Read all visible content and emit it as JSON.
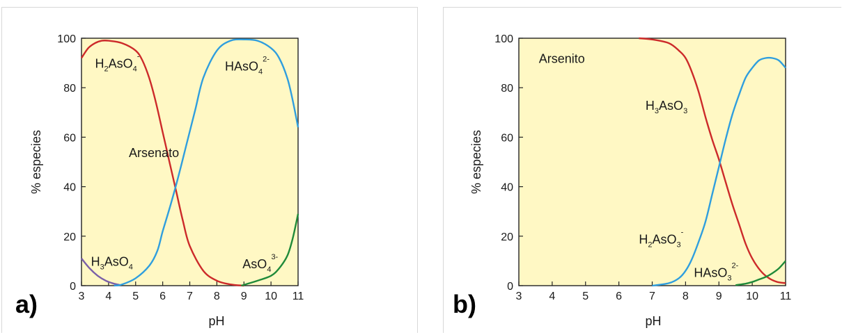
{
  "chart_data": [
    {
      "type": "line",
      "panel_label": "a)",
      "xlabel": "pH",
      "ylabel": "% especies",
      "xlim": [
        3,
        11
      ],
      "ylim": [
        0,
        100
      ],
      "xticks": [
        3,
        4,
        5,
        6,
        7,
        8,
        9,
        10,
        11
      ],
      "yticks": [
        0,
        20,
        40,
        60,
        80,
        100
      ],
      "background": "#fff8c4",
      "grid": false,
      "annotations": [
        {
          "text": "Arsenato",
          "x": 4.75,
          "y": 52,
          "parts": [
            {
              "t": "Arsenato"
            }
          ]
        },
        {
          "text": "H2AsO4-",
          "x": 3.5,
          "y": 88,
          "parts": [
            {
              "t": "H"
            },
            {
              "t": "2",
              "sub": true
            },
            {
              "t": "AsO"
            },
            {
              "t": "4",
              "sub": true
            },
            {
              "t": "-",
              "sup": true
            }
          ]
        },
        {
          "text": "HAsO42-",
          "x": 8.3,
          "y": 87,
          "parts": [
            {
              "t": "HAsO"
            },
            {
              "t": "4",
              "sub": true
            },
            {
              "t": "2-",
              "sup": true
            }
          ]
        },
        {
          "text": "H3AsO4",
          "x": 3.35,
          "y": 8,
          "parts": [
            {
              "t": "H"
            },
            {
              "t": "3",
              "sub": true
            },
            {
              "t": "AsO"
            },
            {
              "t": "4",
              "sub": true
            }
          ]
        },
        {
          "text": "AsO43-",
          "x": 8.95,
          "y": 7,
          "parts": [
            {
              "t": "AsO"
            },
            {
              "t": "4",
              "sub": true
            },
            {
              "t": "3-",
              "sup": true
            }
          ]
        }
      ],
      "series": [
        {
          "color": "#7a5fa8",
          "x": [
            3,
            3.3,
            3.6,
            3.9,
            4.2,
            4.4
          ],
          "values": [
            11,
            7,
            4,
            2,
            0.8,
            0.3
          ]
        },
        {
          "color": "#cc2a2a",
          "x": [
            3,
            3.25,
            3.5,
            3.75,
            4,
            4.5,
            5,
            5.25,
            5.5,
            5.75,
            6,
            6.25,
            6.5,
            6.75,
            7,
            7.5,
            8,
            8.5,
            9
          ],
          "values": [
            92,
            96,
            98,
            99,
            99,
            98,
            95,
            91,
            84,
            74,
            62,
            50,
            38,
            26,
            16,
            6,
            2,
            0.5,
            0
          ]
        },
        {
          "color": "#2f9ede",
          "x": [
            4.2,
            4.5,
            5,
            5.5,
            5.8,
            6,
            6.3,
            6.6,
            6.9,
            7.2,
            7.5,
            8,
            8.5,
            9,
            9.5,
            10,
            10.3,
            10.6,
            10.8,
            11
          ],
          "values": [
            0,
            0.5,
            3,
            8,
            14,
            22,
            33,
            45,
            58,
            71,
            84,
            95,
            99,
            99.5,
            99,
            96,
            92,
            84,
            75,
            64
          ]
        },
        {
          "color": "#1f8a3a",
          "x": [
            8.9,
            9.5,
            10,
            10.3,
            10.6,
            10.8,
            11
          ],
          "values": [
            0,
            2,
            4,
            7,
            12,
            19,
            29
          ]
        }
      ]
    },
    {
      "type": "line",
      "panel_label": "b)",
      "xlabel": "pH",
      "ylabel": "% especies",
      "xlim": [
        3,
        11
      ],
      "ylim": [
        0,
        100
      ],
      "xticks": [
        3,
        4,
        5,
        6,
        7,
        8,
        9,
        10,
        11
      ],
      "yticks": [
        0,
        20,
        40,
        60,
        80,
        100
      ],
      "background": "#fff8c4",
      "grid": false,
      "annotations": [
        {
          "text": "Arsenito",
          "x": 3.6,
          "y": 90,
          "parts": [
            {
              "t": "Arsenito"
            }
          ]
        },
        {
          "text": "H3AsO3",
          "x": 6.8,
          "y": 71,
          "parts": [
            {
              "t": "H"
            },
            {
              "t": "3",
              "sub": true
            },
            {
              "t": "AsO"
            },
            {
              "t": "3",
              "sub": true
            }
          ]
        },
        {
          "text": "H2AsO3-",
          "x": 6.6,
          "y": 17,
          "parts": [
            {
              "t": "H"
            },
            {
              "t": "2",
              "sub": true
            },
            {
              "t": "AsO"
            },
            {
              "t": "3",
              "sub": true
            },
            {
              "t": "-",
              "sup": true
            }
          ]
        },
        {
          "text": "HAsO32-",
          "x": 8.25,
          "y": 3.5,
          "parts": [
            {
              "t": "HAsO"
            },
            {
              "t": "3",
              "sub": true
            },
            {
              "t": "2-",
              "sup": true
            }
          ]
        }
      ],
      "series": [
        {
          "color": "#cc2a2a",
          "x": [
            6.6,
            7,
            7.5,
            7.8,
            8,
            8.2,
            8.4,
            8.6,
            8.8,
            9,
            9.2,
            9.4,
            9.6,
            9.8,
            10,
            10.25,
            10.5,
            10.75,
            11
          ],
          "values": [
            100,
            99.5,
            98,
            95,
            92,
            86,
            78,
            68,
            59,
            51,
            42,
            33,
            25,
            17,
            11,
            6,
            3,
            1.5,
            1
          ]
        },
        {
          "color": "#2f9ede",
          "x": [
            7,
            7.5,
            7.8,
            8,
            8.2,
            8.4,
            8.6,
            8.8,
            9,
            9.2,
            9.4,
            9.6,
            9.8,
            10,
            10.2,
            10.4,
            10.6,
            10.8,
            11
          ],
          "values": [
            0,
            1,
            3,
            6,
            11,
            18,
            26,
            37,
            48,
            59,
            69,
            77,
            84,
            88,
            91,
            92,
            92,
            91,
            88
          ]
        },
        {
          "color": "#1f8a3a",
          "x": [
            9.5,
            9.8,
            10,
            10.2,
            10.4,
            10.6,
            10.8,
            11
          ],
          "values": [
            0.2,
            0.8,
            1.5,
            2.5,
            3.5,
            5,
            7,
            10
          ]
        }
      ]
    }
  ]
}
